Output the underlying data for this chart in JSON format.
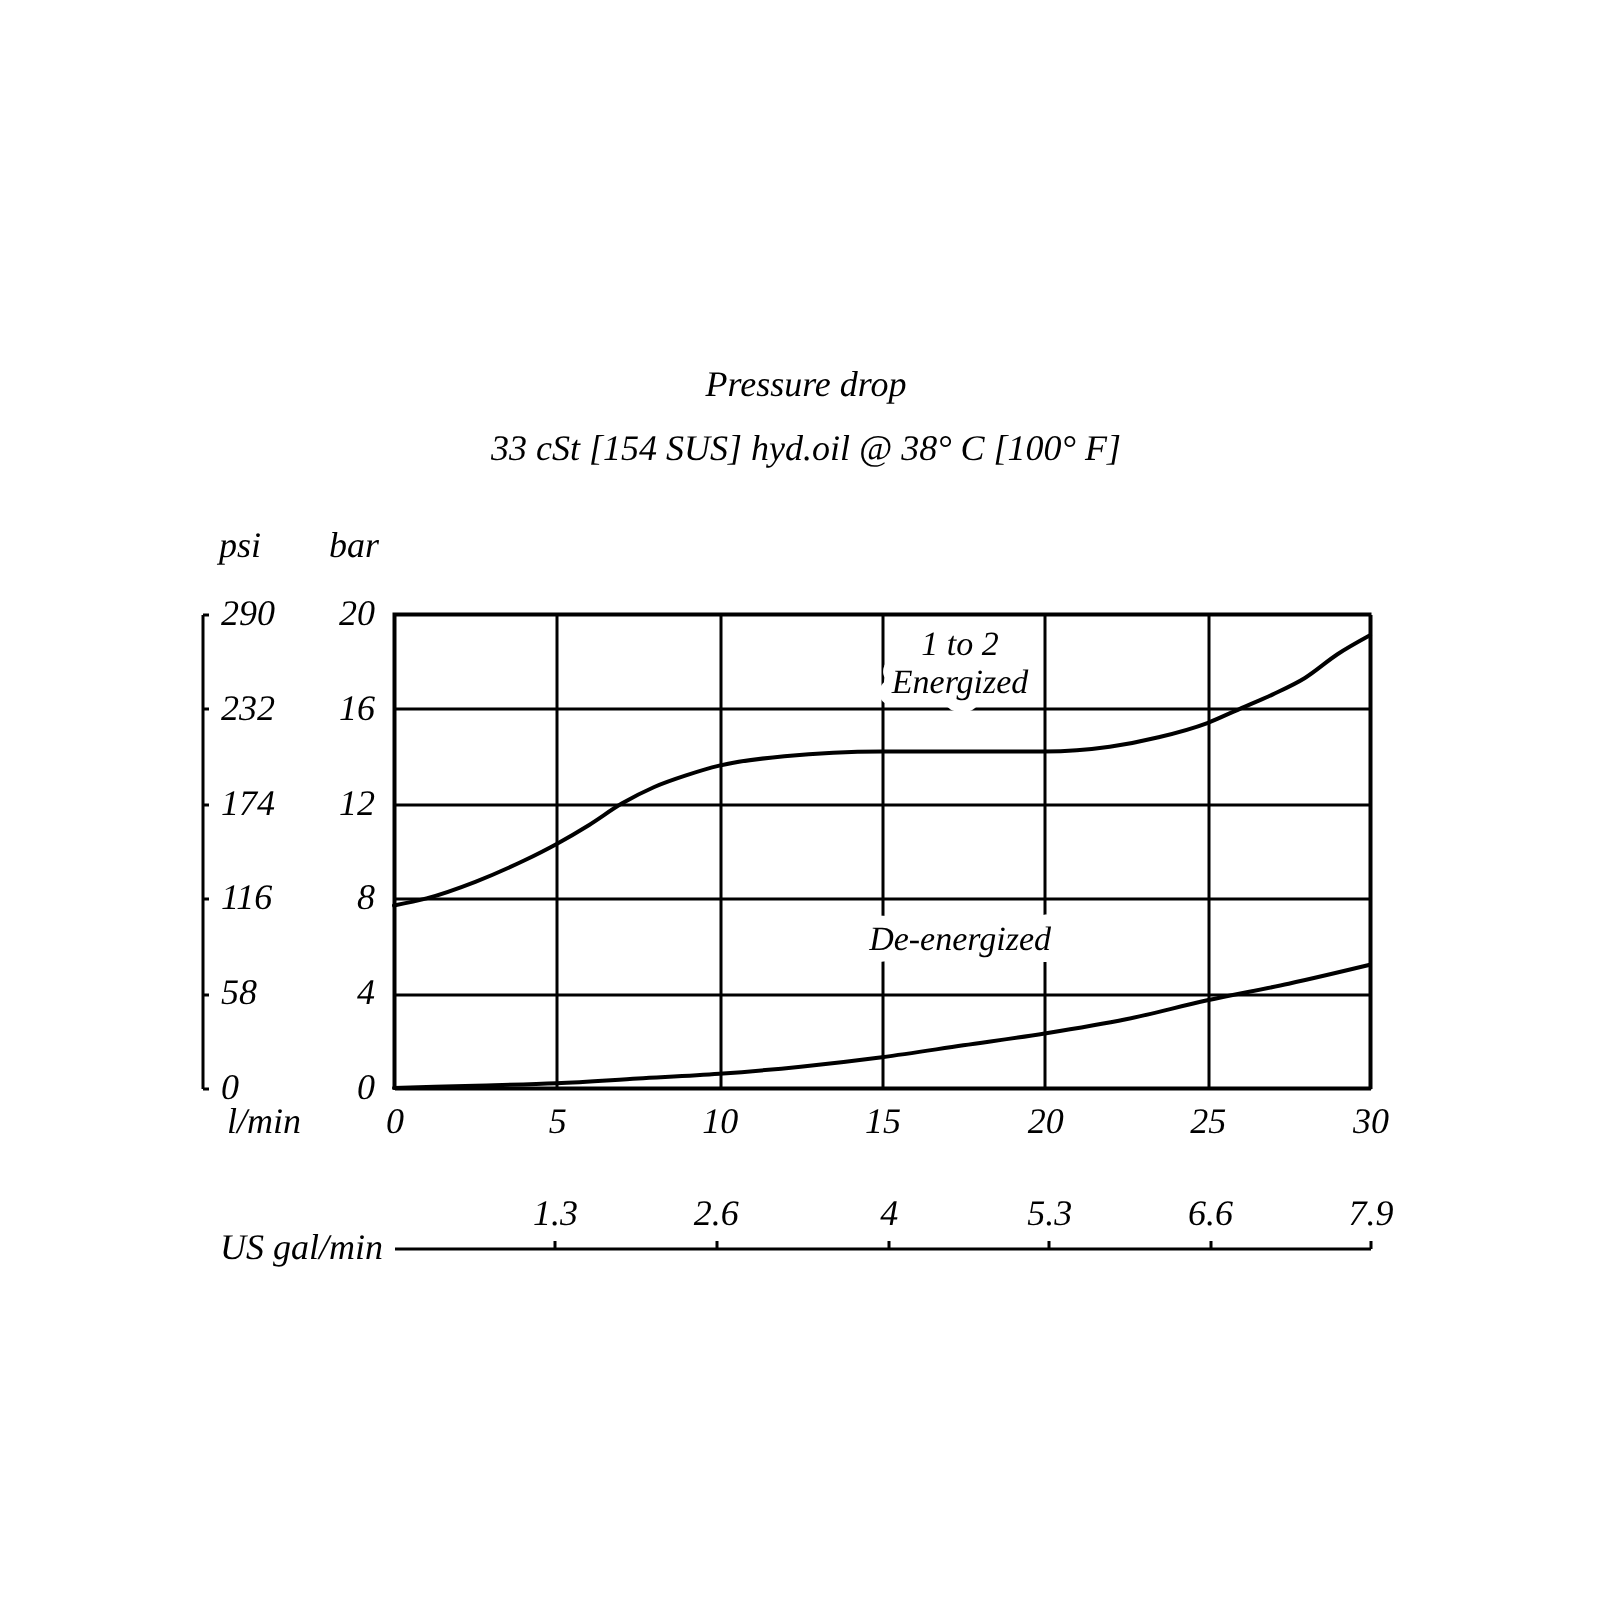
{
  "chart_data": {
    "type": "line",
    "title": "Pressure drop",
    "subtitle": "33 cSt [154 SUS] hyd.oil @ 38° C [100° F]",
    "xlabel": "l/min",
    "ylabel": "bar",
    "y2label": "psi",
    "x2label": "US gal/min",
    "xlim": [
      0,
      30
    ],
    "xticks": [
      0,
      5,
      10,
      15,
      20,
      25,
      30
    ],
    "ylim": [
      0,
      20
    ],
    "yticks": [
      0,
      4,
      8,
      12,
      16,
      20
    ],
    "y2lim": [
      0,
      290
    ],
    "y2ticks": [
      0,
      58,
      116,
      174,
      232,
      290
    ],
    "x2lim": [
      0,
      7.9
    ],
    "x2ticks": [
      1.3,
      2.6,
      4,
      5.3,
      6.6,
      7.9
    ],
    "grid": true,
    "series": [
      {
        "name": "1 to 2 Energized",
        "color": "#000000",
        "x": [
          0,
          1,
          2.5,
          4,
          5,
          6,
          7,
          8,
          9,
          10,
          12,
          15,
          17.5,
          20,
          22,
          23.5,
          25,
          26,
          27,
          28,
          29,
          30
        ],
        "values": [
          7.7,
          8.0,
          8.7,
          9.6,
          10.3,
          11.1,
          12.0,
          12.7,
          13.2,
          13.6,
          14.0,
          14.2,
          14.2,
          14.2,
          14.4,
          14.8,
          15.4,
          16.0,
          16.6,
          17.3,
          18.3,
          19.1
        ]
      },
      {
        "name": "De-energized",
        "color": "#000000",
        "x": [
          0,
          2.5,
          5,
          7.5,
          10,
          12.5,
          15,
          17.5,
          20,
          22.5,
          25,
          27.5,
          30
        ],
        "values": [
          0,
          0.1,
          0.2,
          0.4,
          0.6,
          0.9,
          1.3,
          1.8,
          2.3,
          2.9,
          3.7,
          4.4,
          5.2
        ]
      }
    ]
  }
}
